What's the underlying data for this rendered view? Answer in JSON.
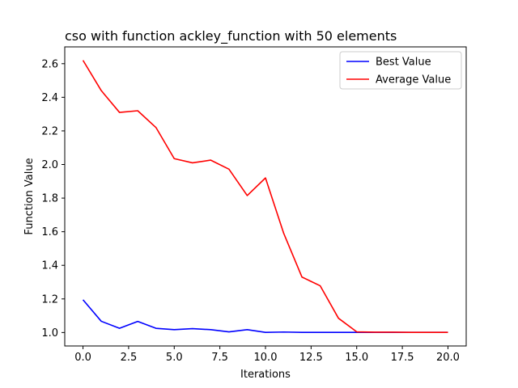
{
  "chart_data": {
    "type": "line",
    "title": "cso with function ackley_function with 50 elements",
    "xlabel": "Iterations",
    "ylabel": "Function Value",
    "xlim": [
      -1.0,
      21.0
    ],
    "ylim": [
      0.92,
      2.7
    ],
    "x_ticks": [
      0.0,
      2.5,
      5.0,
      7.5,
      10.0,
      12.5,
      15.0,
      17.5,
      20.0
    ],
    "x_tick_labels": [
      "0.0",
      "2.5",
      "5.0",
      "7.5",
      "10.0",
      "12.5",
      "15.0",
      "17.5",
      "20.0"
    ],
    "y_ticks": [
      1.0,
      1.2,
      1.4,
      1.6,
      1.8,
      2.0,
      2.2,
      2.4,
      2.6
    ],
    "y_tick_labels": [
      "1.0",
      "1.2",
      "1.4",
      "1.6",
      "1.8",
      "2.0",
      "2.2",
      "2.4",
      "2.6"
    ],
    "grid": false,
    "legend_position": "top-right",
    "x": [
      0,
      1,
      2,
      3,
      4,
      5,
      6,
      7,
      8,
      9,
      10,
      11,
      12,
      13,
      14,
      15,
      16,
      17,
      18,
      19,
      20
    ],
    "series": [
      {
        "name": "Best Value",
        "color": "#0000ff",
        "values": [
          1.195,
          1.067,
          1.025,
          1.066,
          1.025,
          1.017,
          1.023,
          1.017,
          1.004,
          1.017,
          1.001,
          1.003,
          1.001,
          1.001,
          1.001,
          1.001,
          1.001,
          1.001,
          1.001,
          1.001,
          1.001
        ]
      },
      {
        "name": "Average Value",
        "color": "#ff0000",
        "values": [
          2.62,
          2.44,
          2.31,
          2.32,
          2.22,
          2.035,
          2.01,
          2.026,
          1.972,
          1.815,
          1.92,
          1.59,
          1.33,
          1.278,
          1.085,
          1.004,
          1.002,
          1.002,
          1.001,
          1.001,
          1.001
        ]
      }
    ]
  }
}
